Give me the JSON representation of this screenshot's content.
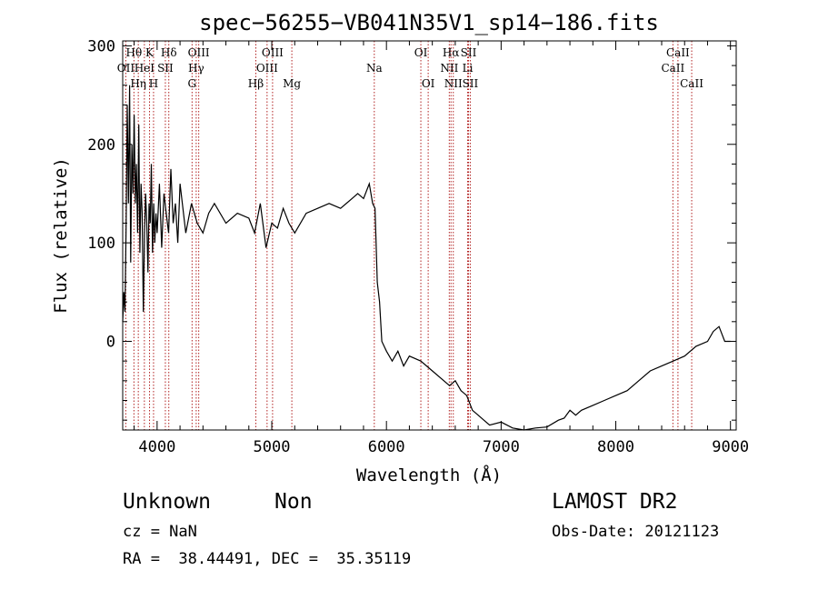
{
  "chart_data": {
    "type": "line",
    "title": "spec−56255−VB041N35V1_sp14−186.fits",
    "xlabel": "Wavelength (Å)",
    "ylabel": "Flux (relative)",
    "xlim": [
      3700,
      9050
    ],
    "ylim": [
      -90,
      305
    ],
    "xticks": [
      4000,
      5000,
      6000,
      7000,
      8000,
      9000
    ],
    "yticks": [
      0,
      100,
      200,
      300
    ],
    "grid": false,
    "series": [
      {
        "x": [
          3700,
          3710,
          3720,
          3730,
          3740,
          3750,
          3760,
          3770,
          3780,
          3790,
          3800,
          3810,
          3820,
          3830,
          3840,
          3850,
          3860,
          3870,
          3880,
          3890,
          3900,
          3910,
          3920,
          3930,
          3940,
          3950,
          3960,
          3970,
          3980,
          3990,
          4000,
          4020,
          4040,
          4060,
          4080,
          4100,
          4120,
          4140,
          4160,
          4180,
          4200,
          4250,
          4300,
          4350,
          4400,
          4450,
          4500,
          4600,
          4700,
          4800,
          4850,
          4900,
          4950,
          5000,
          5050,
          5100,
          5150,
          5200,
          5300,
          5400,
          5500,
          5600,
          5700,
          5750,
          5800,
          5850,
          5880,
          5900,
          5910,
          5920,
          5940,
          5960,
          6000,
          6050,
          6100,
          6150,
          6200,
          6300,
          6400,
          6500,
          6550,
          6600,
          6650,
          6700,
          6750,
          6800,
          6850,
          6900,
          7000,
          7100,
          7200,
          7300,
          7400,
          7500,
          7550,
          7600,
          7650,
          7700,
          7800,
          7900,
          8000,
          8100,
          8200,
          8300,
          8400,
          8500,
          8600,
          8700,
          8800,
          8850,
          8900,
          8950,
          9000
        ],
        "y": [
          20,
          50,
          30,
          120,
          240,
          140,
          260,
          80,
          200,
          150,
          230,
          140,
          180,
          110,
          220,
          90,
          160,
          130,
          30,
          110,
          150,
          120,
          70,
          140,
          120,
          180,
          90,
          140,
          100,
          130,
          110,
          160,
          95,
          150,
          130,
          110,
          175,
          120,
          140,
          100,
          160,
          110,
          140,
          120,
          110,
          130,
          140,
          120,
          130,
          125,
          110,
          140,
          95,
          120,
          115,
          135,
          120,
          110,
          130,
          135,
          140,
          135,
          145,
          150,
          145,
          160,
          140,
          135,
          100,
          60,
          40,
          0,
          -10,
          -20,
          -10,
          -25,
          -15,
          -20,
          -30,
          -40,
          -45,
          -40,
          -50,
          -55,
          -70,
          -75,
          -80,
          -85,
          -82,
          -88,
          -90,
          -88,
          -87,
          -80,
          -78,
          -70,
          -75,
          -70,
          -65,
          -60,
          -55,
          -50,
          -40,
          -30,
          -25,
          -20,
          -15,
          -5,
          0,
          10,
          15,
          0,
          0
        ]
      }
    ],
    "lines": [
      {
        "label": "OII",
        "x": 3727,
        "row": 2
      },
      {
        "label": "Hθ",
        "x": 3798,
        "row": 1
      },
      {
        "label": "Hη",
        "x": 3836,
        "row": 3
      },
      {
        "label": "HeI",
        "x": 3889,
        "row": 2
      },
      {
        "label": "K",
        "x": 3934,
        "row": 1
      },
      {
        "label": "H",
        "x": 3969,
        "row": 3
      },
      {
        "label": "SII",
        "x": 4072,
        "row": 2
      },
      {
        "label": "Hδ",
        "x": 4102,
        "row": 1
      },
      {
        "label": "G",
        "x": 4305,
        "row": 3
      },
      {
        "label": "Hγ",
        "x": 4341,
        "row": 2
      },
      {
        "label": "OIII",
        "x": 4363,
        "row": 1
      },
      {
        "label": "Hβ",
        "x": 4861,
        "row": 3
      },
      {
        "label": "OIII",
        "x": 4959,
        "row": 2
      },
      {
        "label": "OIII",
        "x": 5007,
        "row": 1
      },
      {
        "label": "Mg",
        "x": 5175,
        "row": 3
      },
      {
        "label": "Na",
        "x": 5894,
        "row": 2
      },
      {
        "label": "OI",
        "x": 6300,
        "row": 1
      },
      {
        "label": "OI",
        "x": 6364,
        "row": 3
      },
      {
        "label": "NII",
        "x": 6548,
        "row": 2
      },
      {
        "label": "Hα",
        "x": 6563,
        "row": 1
      },
      {
        "label": "NII",
        "x": 6583,
        "row": 3
      },
      {
        "label": "Li",
        "x": 6708,
        "row": 2
      },
      {
        "label": "SII",
        "x": 6716,
        "row": 1
      },
      {
        "label": "SII",
        "x": 6731,
        "row": 3
      },
      {
        "label": "CaII",
        "x": 8498,
        "row": 2
      },
      {
        "label": "CaII",
        "x": 8542,
        "row": 1
      },
      {
        "label": "CaII",
        "x": 8662,
        "row": 3
      }
    ]
  },
  "info": {
    "class": "Unknown",
    "subclass": "Non",
    "cz": "cz = NaN",
    "coords": "RA =  38.44491, DEC =  35.35119",
    "survey": "LAMOST DR2",
    "obsdate": "Obs-Date: 20121123"
  },
  "colors": {
    "axis": "#000000",
    "spectrum": "#000000",
    "line_marker": "#b22222"
  }
}
